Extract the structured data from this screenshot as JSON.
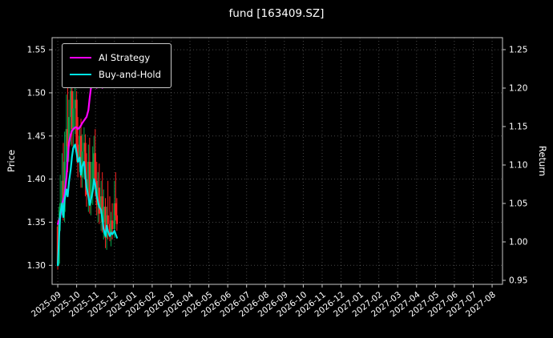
{
  "chart_data": {
    "type": "candlestick+line",
    "title": "fund [163409.SZ]",
    "ylabel_left": "Price",
    "ylabel_right": "Return",
    "legend_position": "upper-left",
    "grid": "dotted",
    "x_tick_labels": [
      "2025-09",
      "2025-10",
      "2025-11",
      "2025-12",
      "2026-01",
      "2026-02",
      "2026-03",
      "2026-04",
      "2026-05",
      "2026-06",
      "2026-07",
      "2026-08",
      "2026-09",
      "2026-10",
      "2026-11",
      "2026-12",
      "2027-01",
      "2027-02",
      "2027-03",
      "2027-04",
      "2027-05",
      "2027-06",
      "2027-07",
      "2027-08"
    ],
    "y_left_tick_labels": [
      "1.30",
      "1.35",
      "1.40",
      "1.45",
      "1.50",
      "1.55"
    ],
    "y_right_tick_labels": [
      "0.95",
      "1.00",
      "1.05",
      "1.10",
      "1.15",
      "1.20",
      "1.25"
    ],
    "xlim_months": [
      -0.3,
      23.55
    ],
    "ylim_left": [
      1.278,
      1.564
    ],
    "ylim_right": [
      0.9448,
      1.2656
    ],
    "colors": {
      "background": "#000000",
      "text": "#ffffff",
      "grid": "rgba(255,255,255,0.28)",
      "spine": "#c8c8c8",
      "candle_up": "#00a44a",
      "candle_down": "#ff2222"
    },
    "dates": [
      "2025-09-01",
      "2025-09-03",
      "2025-09-05",
      "2025-09-08",
      "2025-09-10",
      "2025-09-12",
      "2025-09-15",
      "2025-09-17",
      "2025-09-19",
      "2025-09-22",
      "2025-09-24",
      "2025-09-26",
      "2025-09-29",
      "2025-10-01",
      "2025-10-03",
      "2025-10-06",
      "2025-10-08",
      "2025-10-10",
      "2025-10-13",
      "2025-10-15",
      "2025-10-17",
      "2025-10-20",
      "2025-10-22",
      "2025-10-24",
      "2025-10-27",
      "2025-10-29",
      "2025-10-31",
      "2025-11-03",
      "2025-11-05",
      "2025-11-07",
      "2025-11-10",
      "2025-11-12",
      "2025-11-14",
      "2025-11-17",
      "2025-11-19",
      "2025-11-21",
      "2025-11-24",
      "2025-11-26",
      "2025-11-28",
      "2025-12-01",
      "2025-12-03",
      "2025-12-05"
    ],
    "ohlc": [
      [
        1.345,
        1.352,
        1.295,
        1.302
      ],
      [
        1.302,
        1.368,
        1.3,
        1.355
      ],
      [
        1.355,
        1.405,
        1.34,
        1.372
      ],
      [
        1.372,
        1.43,
        1.358,
        1.398
      ],
      [
        1.398,
        1.442,
        1.352,
        1.362
      ],
      [
        1.362,
        1.455,
        1.35,
        1.42
      ],
      [
        1.42,
        1.498,
        1.402,
        1.458
      ],
      [
        1.458,
        1.52,
        1.408,
        1.438
      ],
      [
        1.438,
        1.492,
        1.42,
        1.472
      ],
      [
        1.472,
        1.528,
        1.44,
        1.502
      ],
      [
        1.502,
        1.522,
        1.438,
        1.458
      ],
      [
        1.458,
        1.502,
        1.432,
        1.482
      ],
      [
        1.482,
        1.512,
        1.452,
        1.492
      ],
      [
        1.492,
        1.502,
        1.42,
        1.44
      ],
      [
        1.44,
        1.472,
        1.402,
        1.42
      ],
      [
        1.42,
        1.462,
        1.408,
        1.45
      ],
      [
        1.45,
        1.47,
        1.39,
        1.402
      ],
      [
        1.402,
        1.452,
        1.39,
        1.432
      ],
      [
        1.432,
        1.46,
        1.4,
        1.442
      ],
      [
        1.442,
        1.452,
        1.38,
        1.4
      ],
      [
        1.4,
        1.43,
        1.368,
        1.382
      ],
      [
        1.382,
        1.44,
        1.362,
        1.42
      ],
      [
        1.42,
        1.448,
        1.36,
        1.372
      ],
      [
        1.372,
        1.42,
        1.358,
        1.4
      ],
      [
        1.4,
        1.438,
        1.37,
        1.42
      ],
      [
        1.42,
        1.45,
        1.388,
        1.43
      ],
      [
        1.43,
        1.458,
        1.38,
        1.398
      ],
      [
        1.398,
        1.42,
        1.358,
        1.37
      ],
      [
        1.37,
        1.408,
        1.35,
        1.39
      ],
      [
        1.39,
        1.418,
        1.348,
        1.36
      ],
      [
        1.36,
        1.398,
        1.34,
        1.38
      ],
      [
        1.38,
        1.408,
        1.338,
        1.35
      ],
      [
        1.35,
        1.388,
        1.33,
        1.368
      ],
      [
        1.368,
        1.378,
        1.32,
        1.332
      ],
      [
        1.332,
        1.368,
        1.318,
        1.358
      ],
      [
        1.358,
        1.398,
        1.33,
        1.348
      ],
      [
        1.348,
        1.38,
        1.328,
        1.338
      ],
      [
        1.338,
        1.362,
        1.322,
        1.352
      ],
      [
        1.352,
        1.372,
        1.33,
        1.342
      ],
      [
        1.342,
        1.398,
        1.332,
        1.372
      ],
      [
        1.372,
        1.408,
        1.352,
        1.358
      ],
      [
        1.358,
        1.378,
        1.34,
        1.348
      ]
    ],
    "series": [
      {
        "name": "AI Strategy",
        "color": "#ff00ff",
        "axis": "left",
        "values": [
          1.348,
          1.352,
          1.356,
          1.372,
          1.376,
          1.382,
          1.402,
          1.422,
          1.442,
          1.452,
          1.456,
          1.458,
          1.46,
          1.46,
          1.458,
          1.46,
          1.462,
          1.465,
          1.468,
          1.47,
          1.472,
          1.48,
          1.494,
          1.505,
          1.514,
          1.52,
          1.516,
          1.506,
          1.51,
          1.514,
          1.511,
          1.506,
          null,
          null,
          null,
          null,
          null,
          null,
          null,
          null,
          null,
          null
        ]
      },
      {
        "name": "Buy-and-Hold",
        "color": "#00e5e5",
        "axis": "left",
        "values": [
          1.3,
          1.332,
          1.36,
          1.372,
          1.356,
          1.376,
          1.388,
          1.38,
          1.396,
          1.412,
          1.426,
          1.436,
          1.44,
          1.43,
          1.42,
          1.425,
          1.405,
          1.415,
          1.42,
          1.405,
          1.39,
          1.38,
          1.37,
          1.376,
          1.386,
          1.4,
          1.394,
          1.38,
          1.374,
          1.368,
          1.364,
          1.354,
          1.342,
          1.334,
          1.346,
          1.34,
          1.334,
          1.338,
          1.336,
          1.34,
          1.336,
          1.332
        ]
      }
    ]
  }
}
